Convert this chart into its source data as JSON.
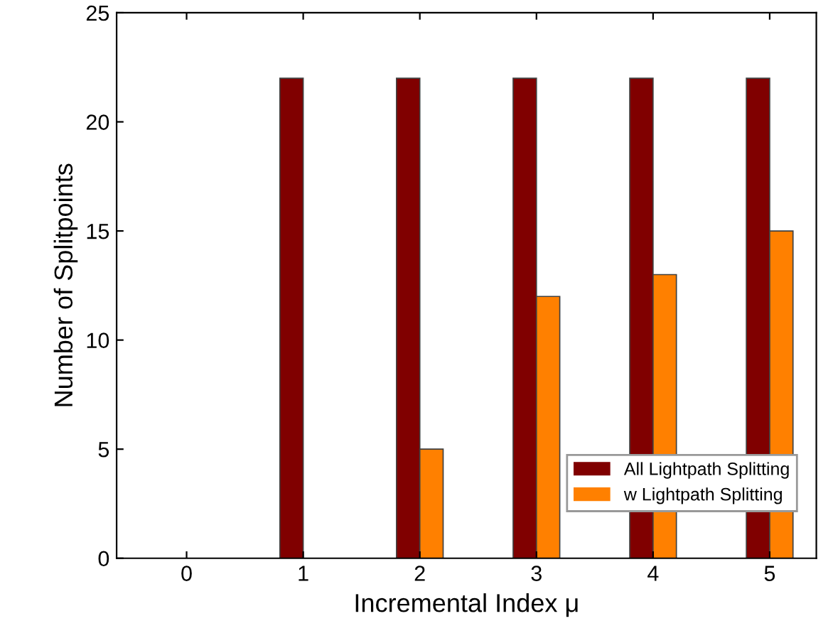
{
  "chart_data": {
    "type": "bar",
    "xlabel": "Incremental Index μ",
    "ylabel": "Number of Splitpoints",
    "categories": [
      "0",
      "1",
      "2",
      "3",
      "4",
      "5"
    ],
    "series": [
      {
        "name": "All Lightpath Splitting",
        "color": "#800000",
        "values": [
          0,
          22,
          22,
          22,
          22,
          22
        ]
      },
      {
        "name": "w Lightpath Splitting",
        "color": "#ff8000",
        "values": [
          0,
          0,
          5,
          12,
          13,
          15
        ]
      }
    ],
    "ylim": [
      0,
      25
    ],
    "yticks": [
      0,
      5,
      10,
      15,
      20,
      25
    ],
    "grid": false,
    "legend": "bottom right"
  }
}
